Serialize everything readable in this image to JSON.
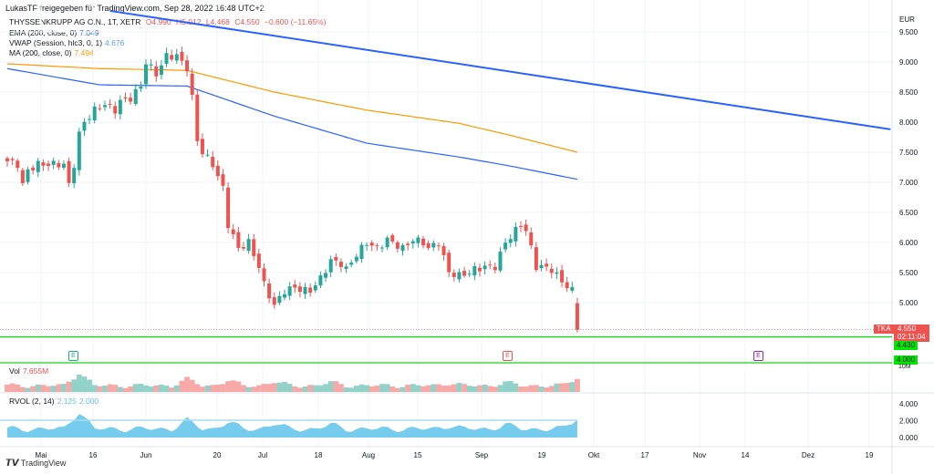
{
  "header": "LukasTF freigegeben für TradingView.com, Sep 28, 2022 16:48 UTC+2",
  "legend": {
    "symbol": "THYSSENKRUPP AG O.N., 1T, XETR",
    "o": "O4.990",
    "h": "H5.012",
    "l": "L4.468",
    "c": "C4.550",
    "chg": "−0.600 (−11.65%)",
    "ema_label": "EMA (200, close, 0)",
    "ema_val": "7.049",
    "vwap_label": "VWAP (Session, hlc3, 0, 1)",
    "vwap_val": "4.676",
    "ma_label": "MA (200, close, 0)",
    "ma_val": "7.494",
    "vol_label": "Vol",
    "vol_val": "7.655M",
    "rvol_label": "RVOL (2, 14)",
    "rvol_val1": "2.125",
    "rvol_val2": "2.000"
  },
  "tags": {
    "ticker": "TKA",
    "price": "4.550",
    "countdown": "02:11:04",
    "line1": "4.430",
    "line2": "4.000",
    "vol_axis": "10M"
  },
  "footer": "TradingView",
  "earnings": [
    "E",
    "E",
    "E"
  ],
  "colors": {
    "up": "#26a69a",
    "down": "#ef5350",
    "ema": "#2962ff",
    "ma": "#ff9800",
    "hline": "#00e600",
    "trend": "#2962ff",
    "rvol": "#5ec3ea"
  },
  "chart_data": {
    "type": "candlestick",
    "currency": "EUR",
    "y_ticks": [
      "9.500",
      "9.000",
      "8.500",
      "8.000",
      "7.500",
      "7.000",
      "6.500",
      "6.000",
      "5.500",
      "5.000"
    ],
    "ylim": [
      4.0,
      9.5
    ],
    "x_ticks": [
      "Mai",
      "16",
      "Jun",
      "20",
      "Jul",
      "18",
      "Aug",
      "15",
      "Sep",
      "19",
      "Okt",
      "17",
      "Nov",
      "14",
      "Dez",
      "19"
    ],
    "rvol_ticks": [
      "4.000",
      "2.000",
      "0.000"
    ],
    "close_keypoints": [
      [
        0,
        7.35
      ],
      [
        2,
        7.3
      ],
      [
        3,
        6.95
      ],
      [
        4,
        7.2
      ],
      [
        6,
        7.3
      ],
      [
        8,
        7.3
      ],
      [
        11,
        7.3
      ],
      [
        12,
        6.95
      ],
      [
        13,
        7.3
      ],
      [
        14,
        7.8
      ],
      [
        15,
        8.0
      ],
      [
        17,
        8.2
      ],
      [
        19,
        8.3
      ],
      [
        21,
        8.2
      ],
      [
        22,
        8.35
      ],
      [
        24,
        8.4
      ],
      [
        26,
        8.6
      ],
      [
        27,
        9.0
      ],
      [
        29,
        8.8
      ],
      [
        31,
        9.1
      ],
      [
        33,
        9.1
      ],
      [
        35,
        8.9
      ],
      [
        36,
        8.4
      ],
      [
        37,
        7.7
      ],
      [
        38,
        7.5
      ],
      [
        40,
        7.3
      ],
      [
        42,
        6.9
      ],
      [
        43,
        6.3
      ],
      [
        45,
        5.9
      ],
      [
        47,
        6.0
      ],
      [
        49,
        5.6
      ],
      [
        50,
        5.3
      ],
      [
        52,
        4.95
      ],
      [
        54,
        5.2
      ],
      [
        56,
        5.25
      ],
      [
        58,
        5.2
      ],
      [
        59,
        5.2
      ],
      [
        61,
        5.4
      ],
      [
        63,
        5.7
      ],
      [
        65,
        5.65
      ],
      [
        66,
        5.55
      ],
      [
        68,
        5.8
      ],
      [
        70,
        6.0
      ],
      [
        72,
        5.9
      ],
      [
        74,
        6.05
      ],
      [
        75,
        6.0
      ],
      [
        77,
        5.9
      ],
      [
        79,
        6.05
      ],
      [
        81,
        6.0
      ],
      [
        82,
        5.9
      ],
      [
        84,
        6.0
      ],
      [
        86,
        5.5
      ],
      [
        88,
        5.45
      ],
      [
        90,
        5.5
      ],
      [
        91,
        5.55
      ],
      [
        93,
        5.6
      ],
      [
        95,
        5.6
      ],
      [
        97,
        6.0
      ],
      [
        98,
        6.1
      ],
      [
        100,
        6.3
      ],
      [
        101,
        6.2
      ],
      [
        103,
        5.6
      ],
      [
        104,
        5.6
      ],
      [
        106,
        5.55
      ],
      [
        108,
        5.35
      ],
      [
        110,
        5.2
      ],
      [
        111,
        4.55
      ]
    ],
    "last_open": 4.99,
    "ema200": [
      [
        0,
        8.89
      ],
      [
        18,
        8.62
      ],
      [
        35,
        8.6
      ],
      [
        52,
        8.1
      ],
      [
        70,
        7.65
      ],
      [
        88,
        7.42
      ],
      [
        98,
        7.27
      ],
      [
        111,
        7.05
      ]
    ],
    "ma200": [
      [
        0,
        8.97
      ],
      [
        18,
        8.89
      ],
      [
        35,
        8.86
      ],
      [
        52,
        8.5
      ],
      [
        70,
        8.2
      ],
      [
        88,
        7.98
      ],
      [
        98,
        7.78
      ],
      [
        111,
        7.5
      ]
    ],
    "trendline": [
      [
        20,
        9.85
      ],
      [
        172,
        7.88
      ]
    ],
    "hlines": [
      4.43,
      4.0
    ],
    "volume_spikes": [
      [
        14,
        3.0
      ],
      [
        35,
        2.0
      ],
      [
        43,
        1.8
      ],
      [
        52,
        1.6
      ],
      [
        63,
        1.5
      ],
      [
        86,
        1.4
      ],
      [
        97,
        1.5
      ],
      [
        111,
        2.2
      ]
    ],
    "rvol_level": 2.0
  }
}
